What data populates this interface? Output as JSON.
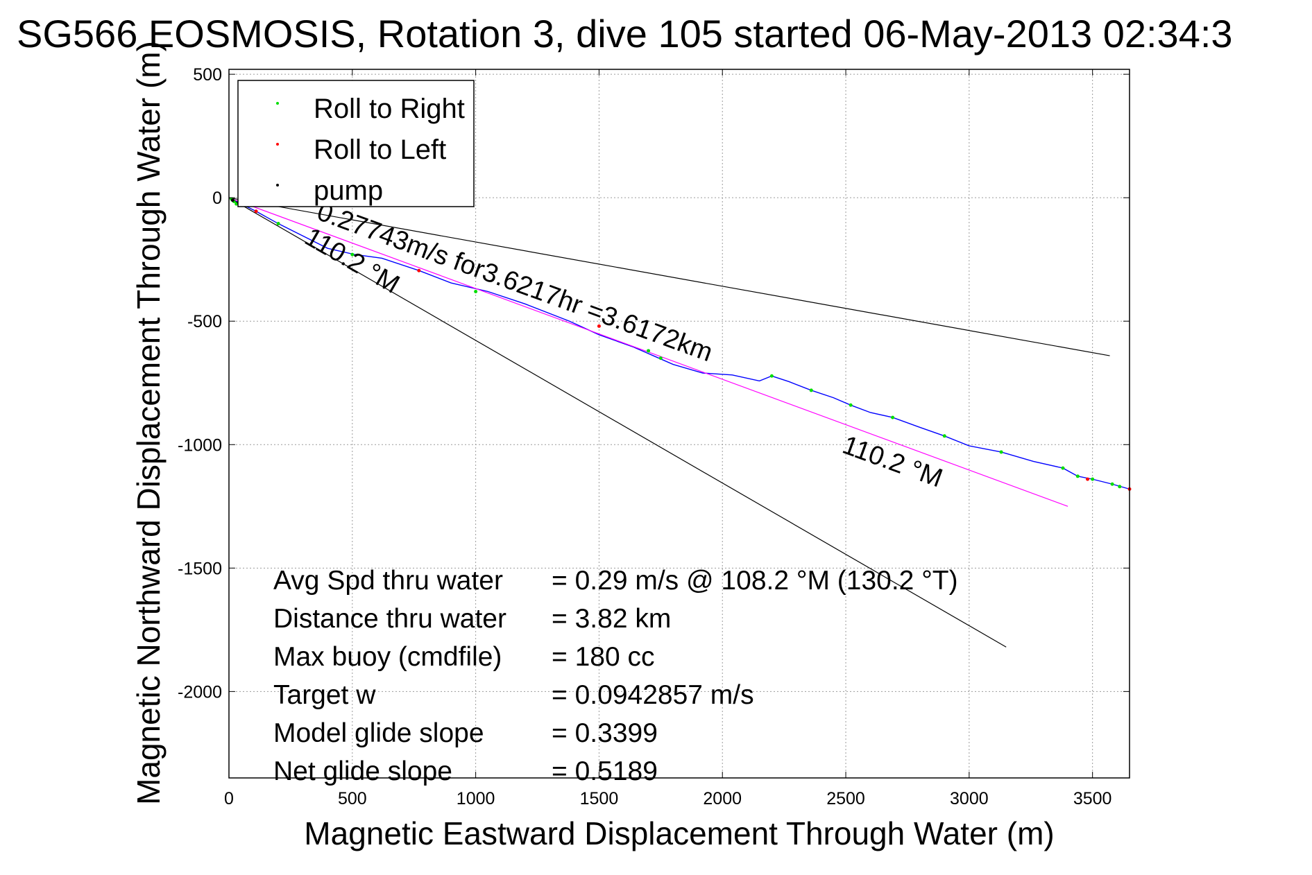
{
  "chart_data": {
    "type": "line",
    "title": "SG566 EOSMOSIS, Rotation 3, dive 105 started 06-May-2013 02:34:3",
    "xlabel": "Magnetic Eastward Displacement Through Water (m)",
    "ylabel": "Magnetic Northward Displacement Through Water (m)",
    "xlim": [
      0,
      3650
    ],
    "ylim": [
      -2350,
      520
    ],
    "xticks": [
      0,
      500,
      1000,
      1500,
      2000,
      2500,
      3000,
      3500
    ],
    "yticks": [
      500,
      0,
      -500,
      -1000,
      -1500,
      -2000
    ],
    "xtick_labels": [
      "0",
      "500",
      "1000",
      "1500",
      "2000",
      "2500",
      "3000",
      "3500"
    ],
    "ytick_labels": [
      "500",
      "0",
      "-500",
      "-1000",
      "-1500",
      "-2000"
    ],
    "grid": true,
    "legend": {
      "placement": "top-left",
      "entries": [
        {
          "label": "Roll to Right",
          "color": "#00dd00"
        },
        {
          "label": "Roll to Left",
          "color": "#ff0000"
        },
        {
          "label": "pump",
          "color": "#000000"
        }
      ]
    },
    "series": [
      {
        "role": "track",
        "color": "#0000ff",
        "x": [
          0,
          110,
          200,
          310,
          400,
          510,
          620,
          770,
          900,
          1050,
          1200,
          1380,
          1500,
          1640,
          1720,
          1800,
          1920,
          2040,
          2150,
          2200,
          2270,
          2360,
          2450,
          2520,
          2600,
          2690,
          2800,
          2900,
          3000,
          3130,
          3260,
          3380,
          3440,
          3500,
          3580,
          3650
        ],
        "y": [
          0,
          -55,
          -105,
          -160,
          -205,
          -230,
          -245,
          -295,
          -345,
          -380,
          -430,
          -500,
          -555,
          -605,
          -640,
          -675,
          -710,
          -718,
          -742,
          -722,
          -745,
          -780,
          -810,
          -840,
          -870,
          -890,
          -930,
          -965,
          -1005,
          -1030,
          -1068,
          -1095,
          -1128,
          -1140,
          -1160,
          -1180
        ]
      },
      {
        "role": "heading-line",
        "color": "#ff00ff",
        "x": [
          0,
          3400
        ],
        "y": [
          0,
          -1250
        ]
      },
      {
        "role": "reference-line",
        "color": "#000000",
        "x": [
          0,
          3570
        ],
        "y": [
          0,
          -640
        ]
      },
      {
        "role": "reference-line",
        "color": "#000000",
        "x": [
          0,
          3150
        ],
        "y": [
          0,
          -1820
        ]
      }
    ],
    "markers": {
      "roll_right": {
        "color": "#00dd00",
        "x": [
          10,
          20,
          30,
          200,
          500,
          1000,
          1700,
          1750,
          2200,
          2360,
          2520,
          2690,
          2900,
          3130,
          3380,
          3440,
          3500,
          3580,
          3610
        ],
        "y": [
          -5,
          -15,
          -25,
          -105,
          -230,
          -380,
          -620,
          -650,
          -722,
          -780,
          -840,
          -890,
          -965,
          -1030,
          -1095,
          -1128,
          -1140,
          -1160,
          -1170
        ]
      },
      "roll_left": {
        "color": "#ff0000",
        "x": [
          110,
          770,
          1500,
          3480,
          3650
        ],
        "y": [
          -55,
          -295,
          -520,
          -1140,
          -1180
        ]
      },
      "pump": {
        "color": "#000000",
        "x": [
          15,
          40
        ],
        "y": [
          -10,
          -20
        ]
      }
    },
    "annotations": [
      {
        "text": "0.27743m/s for3.6217hr =3.6172km",
        "x": 350,
        "y": -85,
        "rotate": 20
      },
      {
        "text": "110.2 °M",
        "x": 300,
        "y": -180,
        "rotate": 30
      },
      {
        "text": "110.2 °M",
        "x": 2480,
        "y": -1030,
        "rotate": 20
      }
    ],
    "stats": [
      {
        "label": "Avg Spd thru water",
        "value": "=  0.29 m/s @ 108.2 °M (130.2 °T)"
      },
      {
        "label": "Distance thru water",
        "value": "=  3.82 km"
      },
      {
        "label": "Max buoy (cmdfile)",
        "value": "= 180 cc"
      },
      {
        "label": "Target w",
        "value": "= 0.0942857 m/s"
      },
      {
        "label": "Model glide slope",
        "value": "= 0.3399"
      },
      {
        "label": "Net glide slope",
        "value": "= 0.5189"
      }
    ]
  }
}
